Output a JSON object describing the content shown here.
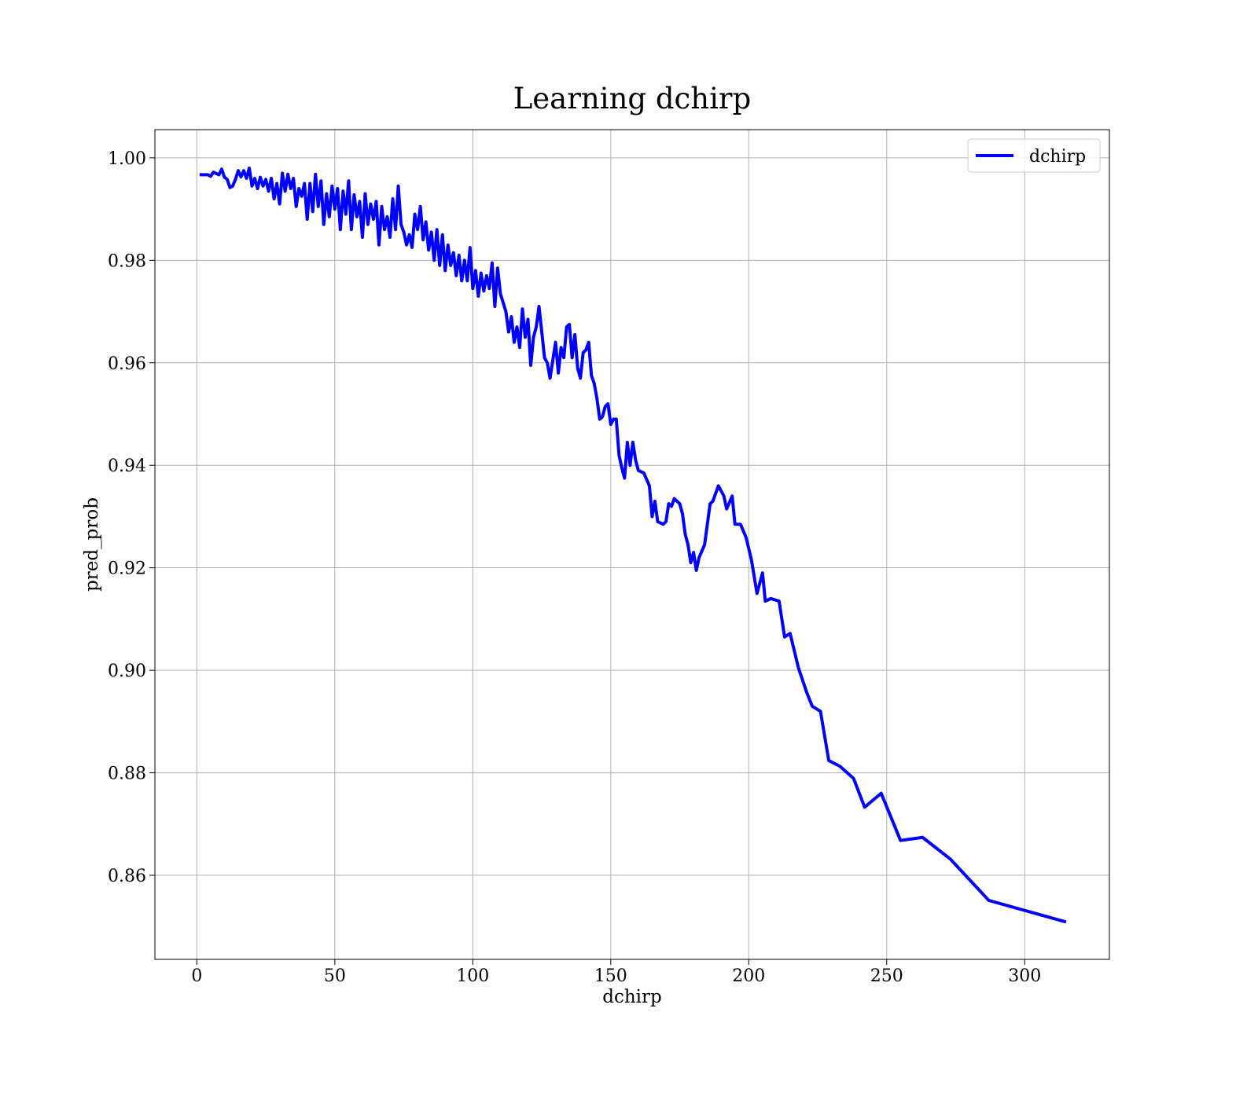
{
  "chart_data": {
    "type": "line",
    "title": "Learning dchirp",
    "x_label": "dchirp",
    "y_label": "pred_prob",
    "x": [
      1,
      4,
      5,
      6,
      8,
      9,
      10,
      11,
      12,
      13,
      14,
      15,
      16,
      17,
      18,
      19,
      20,
      21,
      22,
      23,
      24,
      25,
      26,
      27,
      28,
      29,
      30,
      31,
      32,
      33,
      34,
      35,
      36,
      37,
      38,
      39,
      40,
      41,
      42,
      43,
      44,
      45,
      46,
      47,
      48,
      49,
      50,
      51,
      52,
      53,
      54,
      55,
      56,
      57,
      58,
      59,
      60,
      61,
      62,
      63,
      64,
      65,
      66,
      67,
      68,
      69,
      70,
      71,
      72,
      73,
      74,
      75,
      76,
      77,
      78,
      79,
      80,
      81,
      82,
      83,
      84,
      85,
      86,
      87,
      88,
      89,
      90,
      91,
      92,
      93,
      94,
      95,
      96,
      97,
      98,
      99,
      100,
      101,
      102,
      103,
      104,
      105,
      106,
      107,
      108,
      109,
      110,
      112,
      113,
      114,
      115,
      116,
      117,
      118,
      119,
      120,
      121,
      122,
      123,
      124,
      125,
      126,
      127,
      128,
      129,
      130,
      131,
      132,
      133,
      134,
      135,
      136,
      137,
      138,
      139,
      140,
      141,
      142,
      143,
      144,
      145,
      146,
      147,
      148,
      149,
      150,
      151,
      152,
      153,
      154,
      155,
      156,
      157,
      158,
      159,
      160,
      162,
      164,
      165,
      166,
      167,
      169,
      170,
      171,
      172,
      173,
      175,
      176,
      177,
      178,
      179,
      180,
      181,
      182,
      184,
      186,
      187,
      189,
      191,
      192,
      194,
      195,
      197,
      199,
      201,
      203,
      205,
      206,
      208,
      211,
      213,
      215,
      218,
      221,
      223,
      226,
      229,
      233,
      238,
      242,
      248,
      255,
      263,
      273,
      287,
      315
    ],
    "series": [
      {
        "name": "dchirp",
        "color": "#0000ff",
        "values": [
          0.9967,
          0.9967,
          0.9964,
          0.9972,
          0.9967,
          0.9978,
          0.9962,
          0.9958,
          0.9942,
          0.9945,
          0.9958,
          0.9975,
          0.9963,
          0.9975,
          0.996,
          0.998,
          0.9945,
          0.996,
          0.994,
          0.9962,
          0.9945,
          0.9958,
          0.9935,
          0.996,
          0.992,
          0.995,
          0.991,
          0.997,
          0.9935,
          0.9968,
          0.994,
          0.996,
          0.9905,
          0.994,
          0.9925,
          0.995,
          0.988,
          0.995,
          0.9895,
          0.9968,
          0.9905,
          0.9955,
          0.987,
          0.993,
          0.9885,
          0.9945,
          0.99,
          0.994,
          0.986,
          0.9935,
          0.989,
          0.9955,
          0.986,
          0.9928,
          0.9885,
          0.9915,
          0.9845,
          0.993,
          0.987,
          0.991,
          0.988,
          0.9915,
          0.983,
          0.9905,
          0.986,
          0.9885,
          0.9845,
          0.992,
          0.986,
          0.9945,
          0.987,
          0.9855,
          0.983,
          0.985,
          0.9825,
          0.989,
          0.986,
          0.9905,
          0.984,
          0.9875,
          0.982,
          0.9855,
          0.98,
          0.986,
          0.979,
          0.985,
          0.978,
          0.983,
          0.979,
          0.9815,
          0.977,
          0.981,
          0.976,
          0.98,
          0.976,
          0.9825,
          0.9745,
          0.978,
          0.973,
          0.9775,
          0.974,
          0.977,
          0.9745,
          0.9795,
          0.971,
          0.9785,
          0.9735,
          0.97,
          0.966,
          0.969,
          0.964,
          0.967,
          0.963,
          0.9705,
          0.965,
          0.9685,
          0.9595,
          0.965,
          0.967,
          0.971,
          0.966,
          0.961,
          0.96,
          0.957,
          0.9605,
          0.964,
          0.958,
          0.963,
          0.961,
          0.967,
          0.9675,
          0.961,
          0.9655,
          0.959,
          0.957,
          0.962,
          0.9625,
          0.964,
          0.9575,
          0.956,
          0.953,
          0.949,
          0.9495,
          0.9515,
          0.952,
          0.948,
          0.949,
          0.949,
          0.942,
          0.9395,
          0.9375,
          0.9445,
          0.94,
          0.9445,
          0.941,
          0.939,
          0.9385,
          0.936,
          0.93,
          0.933,
          0.929,
          0.9285,
          0.929,
          0.9325,
          0.932,
          0.9335,
          0.9325,
          0.9305,
          0.9265,
          0.9245,
          0.921,
          0.923,
          0.9195,
          0.922,
          0.9245,
          0.9325,
          0.933,
          0.936,
          0.934,
          0.9315,
          0.934,
          0.9285,
          0.9285,
          0.926,
          0.9215,
          0.915,
          0.919,
          0.9135,
          0.914,
          0.9135,
          0.9065,
          0.9072,
          0.9005,
          0.8957,
          0.893,
          0.892,
          0.8824,
          0.8813,
          0.8789,
          0.8733,
          0.876,
          0.8668,
          0.8674,
          0.8632,
          0.8551,
          0.8509
        ]
      }
    ],
    "xlim": [
      -15.2,
      330.7
    ],
    "xticks": [
      0,
      50,
      100,
      150,
      200,
      250,
      300
    ],
    "ylim": [
      0.8436,
      1.0055
    ],
    "yticks": [
      0.86,
      0.88,
      {
        "value": 0.9,
        "label": "0.90"
      },
      0.92,
      0.94,
      0.96,
      0.98,
      {
        "value": 1.0,
        "label": "1.00"
      }
    ],
    "grid": true,
    "legend": "upper right"
  }
}
